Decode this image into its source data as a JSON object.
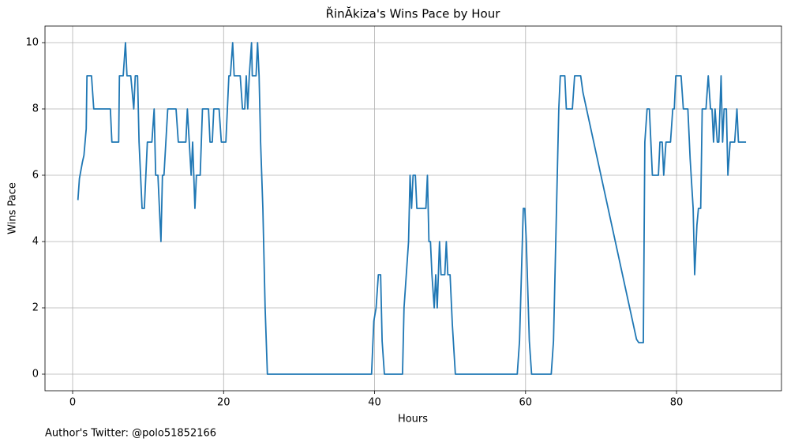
{
  "chart_data": {
    "type": "line",
    "title": "ŘinĂkiza's Wins Pace by Hour",
    "xlabel": "Hours",
    "ylabel": "Wins Pace",
    "footnote": "Author's Twitter: @polo51852166",
    "xlim": [
      -3.66,
      93.9
    ],
    "ylim": [
      -0.5,
      10.5
    ],
    "xticks": [
      0,
      20,
      40,
      60,
      80
    ],
    "yticks": [
      0,
      2,
      4,
      6,
      8,
      10
    ],
    "grid": true,
    "x": [
      0.7,
      0.9,
      1.3,
      1.5,
      1.8,
      1.9,
      2.5,
      2.8,
      5.0,
      5.2,
      6.1,
      6.2,
      6.7,
      7.0,
      7.2,
      7.7,
      8.1,
      8.3,
      8.6,
      8.8,
      9.2,
      9.5,
      9.9,
      10.5,
      10.8,
      11.0,
      11.3,
      11.7,
      11.9,
      12.1,
      12.6,
      13.7,
      14.0,
      15.0,
      15.2,
      15.7,
      15.9,
      16.2,
      16.4,
      16.9,
      17.2,
      18.0,
      18.2,
      18.5,
      18.7,
      19.4,
      19.7,
      20.3,
      20.5,
      20.7,
      20.9,
      21.2,
      21.4,
      22.2,
      22.5,
      22.8,
      23.0,
      23.2,
      23.4,
      23.7,
      23.8,
      24.3,
      24.5,
      24.7,
      24.9,
      25.2,
      25.5,
      25.8,
      39.6,
      39.9,
      40.2,
      40.5,
      40.8,
      41.0,
      41.3,
      43.7,
      43.9,
      44.5,
      44.7,
      44.9,
      45.1,
      45.4,
      45.6,
      46.8,
      47.0,
      47.2,
      47.4,
      47.6,
      47.9,
      48.1,
      48.3,
      48.6,
      48.8,
      49.3,
      49.5,
      49.7,
      50.0,
      50.3,
      50.7,
      58.9,
      59.2,
      59.7,
      59.9,
      60.1,
      60.5,
      60.8,
      63.4,
      63.7,
      64.1,
      64.4,
      64.6,
      65.2,
      65.4,
      66.2,
      66.5,
      67.3,
      67.6,
      74.7,
      75.0,
      75.6,
      75.8,
      76.1,
      76.4,
      76.6,
      76.8,
      77.6,
      77.8,
      78.1,
      78.3,
      78.6,
      79.2,
      79.5,
      79.7,
      79.9,
      80.6,
      80.9,
      81.5,
      81.8,
      82.2,
      82.4,
      82.7,
      82.9,
      83.2,
      83.4,
      83.9,
      84.2,
      84.5,
      84.7,
      84.9,
      85.1,
      85.4,
      85.6,
      85.9,
      86.1,
      86.3,
      86.6,
      86.8,
      87.1,
      87.7,
      88.0,
      88.2,
      89.2
    ],
    "series": [
      {
        "color": "#1f77b4",
        "values": [
          5.25,
          5.9,
          6.4,
          6.6,
          7.4,
          9,
          9,
          8,
          8,
          7,
          7,
          9,
          9,
          10,
          9,
          9,
          8,
          9,
          9,
          7,
          5,
          5,
          7,
          7,
          8,
          6,
          6,
          4,
          6,
          6,
          8,
          8,
          7,
          7,
          8,
          6,
          7,
          5,
          6,
          6,
          8,
          8,
          7,
          7,
          8,
          8,
          7,
          7,
          8,
          9,
          9,
          10,
          9,
          9,
          8,
          8,
          9,
          8,
          9,
          10,
          9,
          9,
          10,
          9,
          7,
          5,
          2,
          0,
          0,
          1.6,
          2,
          3,
          3,
          1,
          0,
          0,
          2,
          4,
          6,
          5,
          6,
          6,
          5,
          5,
          6,
          4,
          4,
          3,
          2,
          3,
          2,
          4,
          3,
          3,
          4,
          3,
          3,
          1.5,
          0,
          0,
          1,
          5,
          5,
          4,
          1,
          0,
          0,
          1,
          5,
          8,
          9,
          9,
          8,
          8,
          9,
          9,
          8.5,
          1.05,
          0.95,
          0.95,
          7,
          8,
          8,
          7,
          6,
          6,
          7,
          7,
          6,
          7,
          7,
          8,
          8,
          9,
          9,
          8,
          8,
          6.5,
          5,
          3,
          4.5,
          5,
          5,
          8,
          8,
          9,
          8,
          8,
          7,
          8,
          7,
          7,
          9,
          7,
          8,
          8,
          6,
          7,
          7,
          8,
          7,
          7
        ]
      }
    ]
  }
}
